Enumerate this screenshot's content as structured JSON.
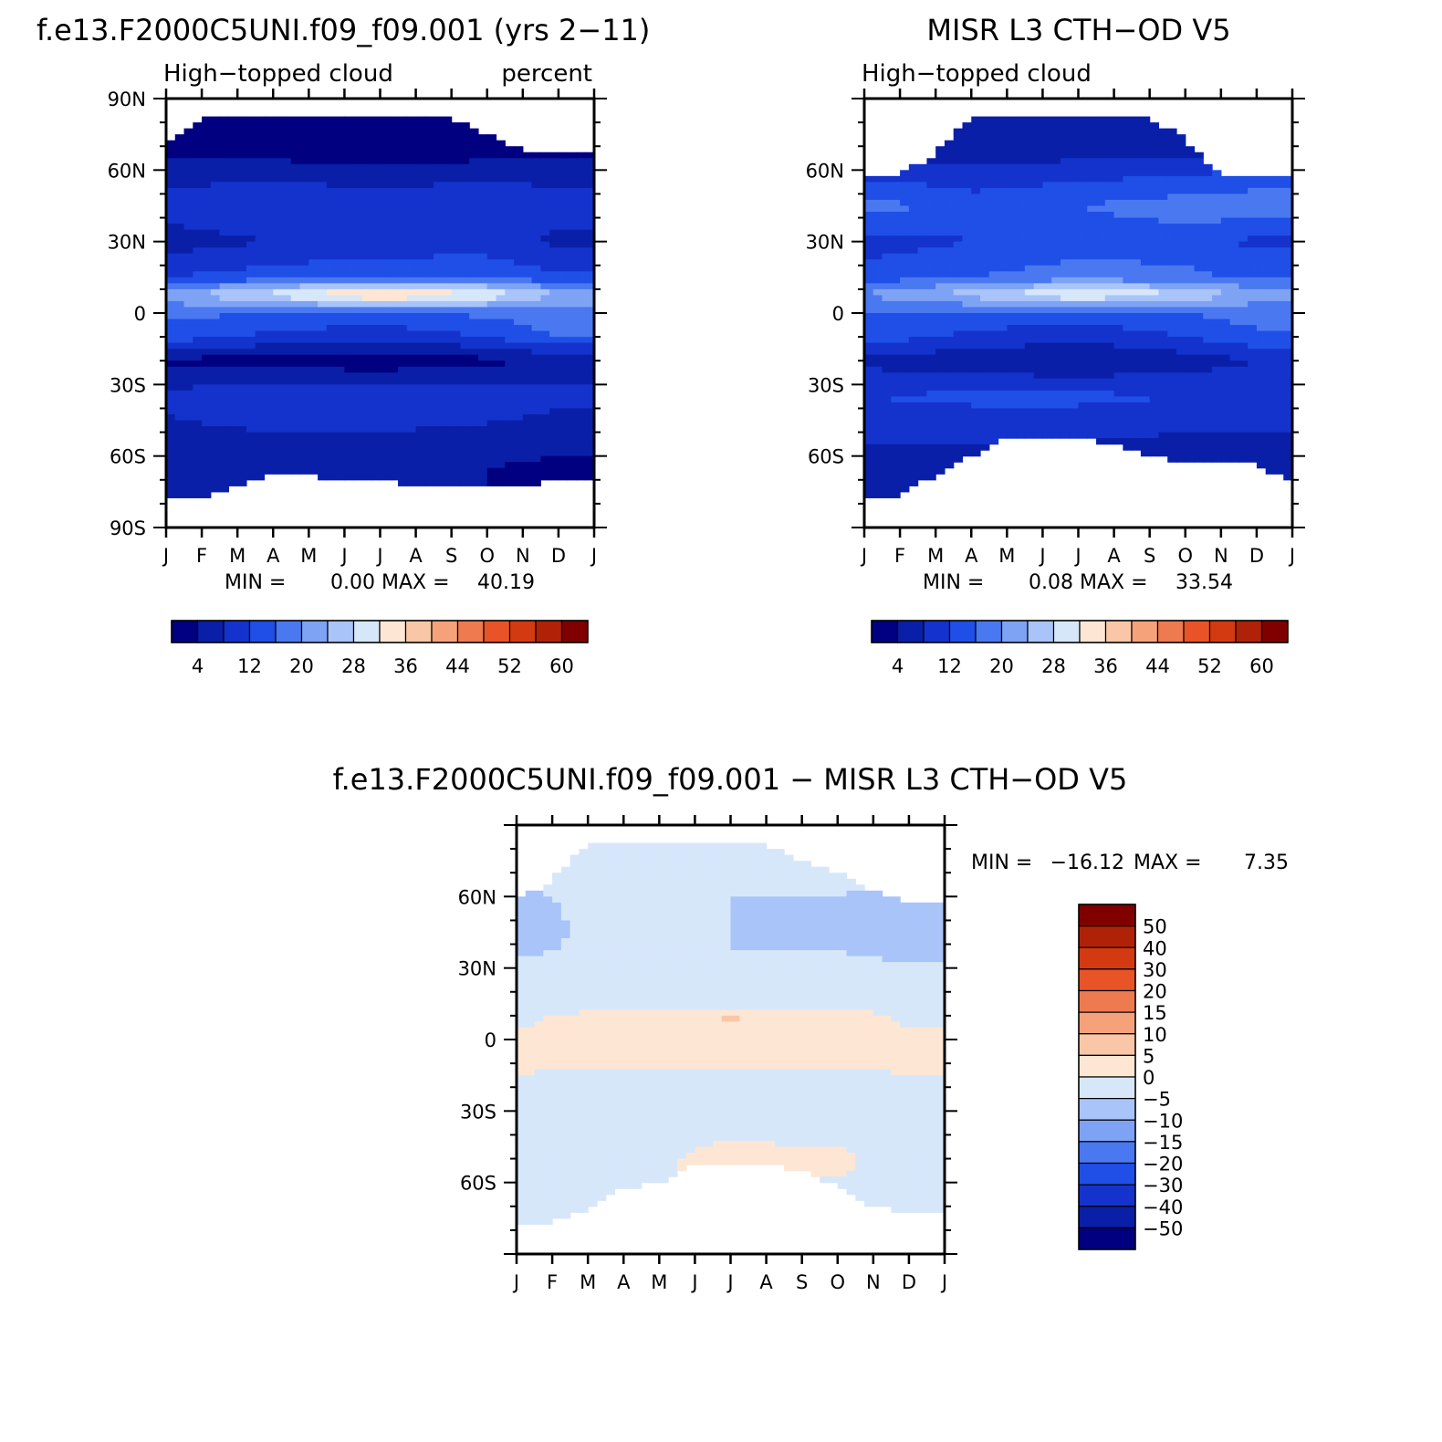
{
  "panels": [
    {
      "title": "f.e13.F2000C5UNI.f09_f09.001 (yrs 2−11)",
      "left_label": "High−topped cloud",
      "right_label": "percent",
      "min_label": "MIN =",
      "min_value": "0.00",
      "max_label": "MAX =",
      "max_value": "40.19"
    },
    {
      "title": "MISR L3 CTH−OD V5",
      "left_label": "High−topped cloud",
      "right_label": "",
      "min_label": "MIN =",
      "min_value": "0.08",
      "max_label": "MAX =",
      "max_value": "33.54"
    },
    {
      "title": "f.e13.F2000C5UNI.f09_f09.001 − MISR L3 CTH−OD V5",
      "left_label": "",
      "right_label": "",
      "min_label": "MIN =",
      "min_value": "−16.12",
      "max_label": "MAX =",
      "max_value": "7.35"
    }
  ],
  "chart_data": [
    {
      "type": "heatmap",
      "title": "f.e13.F2000C5UNI.f09_f09.001 (yrs 2−11)",
      "subtitle_left": "High−topped cloud",
      "subtitle_right": "percent",
      "x_ticks": [
        "J",
        "F",
        "M",
        "A",
        "M",
        "J",
        "J",
        "A",
        "S",
        "O",
        "N",
        "D",
        "J"
      ],
      "y_ticks": [
        "90N",
        "60N",
        "30N",
        "0",
        "30S",
        "60S",
        "90S"
      ],
      "y_tick_values": [
        90,
        60,
        30,
        0,
        -30,
        -60,
        -90
      ],
      "xlim": [
        0,
        12
      ],
      "ylim": [
        -90,
        90
      ],
      "min": 0.0,
      "max": 40.19,
      "colorbar_labels": [
        "4",
        "12",
        "20",
        "28",
        "36",
        "44",
        "52",
        "60"
      ],
      "colorbar_levels": [
        0,
        4,
        8,
        12,
        16,
        20,
        24,
        28,
        32,
        36,
        40,
        44,
        48,
        52,
        56,
        60,
        64
      ],
      "colorbar_colors": [
        "#000080",
        "#0a1fa8",
        "#1433cc",
        "#1f4fe6",
        "#4a78f0",
        "#7ea3f5",
        "#a9c4f8",
        "#d7e7fa",
        "#fde6d3",
        "#f9c7a7",
        "#f5a27b",
        "#ee7a4f",
        "#e85428",
        "#d43a12",
        "#b02208",
        "#800000"
      ],
      "data": {
        "latitudes": [
          70,
          60,
          45,
          30,
          15,
          8,
          0,
          -10,
          -20,
          -35,
          -50,
          -65
        ],
        "months": [
          1,
          4,
          7,
          10,
          12
        ],
        "values": [
          [
            1,
            1,
            1,
            1,
            2
          ],
          [
            6,
            6,
            5,
            6,
            6
          ],
          [
            10,
            12,
            11,
            12,
            10
          ],
          [
            6,
            8,
            9,
            10,
            7
          ],
          [
            12,
            14,
            16,
            15,
            13
          ],
          [
            22,
            30,
            38,
            32,
            24
          ],
          [
            17,
            16,
            15,
            17,
            19
          ],
          [
            14,
            11,
            9,
            12,
            16
          ],
          [
            3,
            2,
            1,
            3,
            5
          ],
          [
            9,
            12,
            12,
            11,
            9
          ],
          [
            7,
            8,
            8,
            7,
            6
          ],
          [
            4,
            5,
            4,
            4,
            3
          ]
        ]
      }
    },
    {
      "type": "heatmap",
      "title": "MISR L3 CTH−OD V5",
      "subtitle_left": "High−topped cloud",
      "x_ticks": [
        "J",
        "F",
        "M",
        "A",
        "M",
        "J",
        "J",
        "A",
        "S",
        "O",
        "N",
        "D",
        "J"
      ],
      "y_ticks": [
        "60N",
        "30N",
        "0",
        "30S",
        "60S"
      ],
      "y_tick_values": [
        60,
        30,
        0,
        -30,
        -60
      ],
      "xlim": [
        0,
        12
      ],
      "ylim": [
        -90,
        90
      ],
      "min": 0.08,
      "max": 33.54,
      "colorbar_labels": [
        "4",
        "12",
        "20",
        "28",
        "36",
        "44",
        "52",
        "60"
      ],
      "colorbar_levels": [
        0,
        4,
        8,
        12,
        16,
        20,
        24,
        28,
        32,
        36,
        40,
        44,
        48,
        52,
        56,
        60,
        64
      ],
      "colorbar_colors": [
        "#000080",
        "#0a1fa8",
        "#1433cc",
        "#1f4fe6",
        "#4a78f0",
        "#7ea3f5",
        "#a9c4f8",
        "#d7e7fa",
        "#fde6d3",
        "#f9c7a7",
        "#f5a27b",
        "#ee7a4f",
        "#e85428",
        "#d43a12",
        "#b02208",
        "#800000"
      ],
      "data": {
        "latitudes": [
          70,
          60,
          45,
          30,
          15,
          8,
          0,
          -10,
          -20,
          -35,
          -50,
          -65
        ],
        "months": [
          1,
          4,
          7,
          10,
          12
        ],
        "values": [
          [
            4,
            4,
            5,
            5,
            5
          ],
          [
            10,
            9,
            10,
            11,
            12
          ],
          [
            18,
            14,
            16,
            18,
            19
          ],
          [
            10,
            12,
            14,
            14,
            11
          ],
          [
            14,
            16,
            18,
            17,
            15
          ],
          [
            20,
            26,
            33,
            28,
            22
          ],
          [
            16,
            15,
            14,
            16,
            18
          ],
          [
            14,
            11,
            9,
            12,
            15
          ],
          [
            7,
            5,
            4,
            6,
            8
          ],
          [
            12,
            13,
            13,
            12,
            11
          ],
          [
            9,
            9,
            9,
            8,
            8
          ],
          [
            6,
            6,
            5,
            5,
            5
          ]
        ]
      }
    },
    {
      "type": "heatmap",
      "title": "f.e13.F2000C5UNI.f09_f09.001 − MISR L3 CTH−OD V5",
      "x_ticks": [
        "J",
        "F",
        "M",
        "A",
        "M",
        "J",
        "J",
        "A",
        "S",
        "O",
        "N",
        "D",
        "J"
      ],
      "y_ticks": [
        "60N",
        "30N",
        "0",
        "30S",
        "60S"
      ],
      "y_tick_values": [
        60,
        30,
        0,
        -30,
        -60
      ],
      "xlim": [
        0,
        12
      ],
      "ylim": [
        -90,
        90
      ],
      "min": -16.12,
      "max": 7.35,
      "colorbar_labels": [
        "50",
        "40",
        "30",
        "20",
        "15",
        "10",
        "5",
        "0",
        "−5",
        "−10",
        "−15",
        "−20",
        "−30",
        "−40",
        "−50"
      ],
      "colorbar_levels": [
        -60,
        -50,
        -40,
        -30,
        -20,
        -15,
        -10,
        -5,
        0,
        5,
        10,
        15,
        20,
        30,
        40,
        50,
        60
      ],
      "colorbar_colors": [
        "#000080",
        "#0a1fa8",
        "#1433cc",
        "#1f4fe6",
        "#4a78f0",
        "#7ea3f5",
        "#a9c4f8",
        "#d7e7fa",
        "#fde6d3",
        "#f9c7a7",
        "#f5a27b",
        "#ee7a4f",
        "#e85428",
        "#d43a12",
        "#b02208",
        "#800000"
      ],
      "data": {
        "latitudes": [
          70,
          60,
          45,
          30,
          15,
          8,
          0,
          -10,
          -20,
          -35,
          -50,
          -65
        ],
        "months": [
          1,
          4,
          7,
          10,
          12
        ],
        "values": [
          [
            -3,
            -3,
            -4,
            -4,
            -3
          ],
          [
            -6,
            -3,
            -5,
            -5,
            -6
          ],
          [
            -8,
            -2,
            -5,
            -6,
            -9
          ],
          [
            -4,
            -4,
            -5,
            -4,
            -4
          ],
          [
            -2,
            -2,
            -2,
            -2,
            -2
          ],
          [
            -1,
            4,
            6,
            4,
            -1
          ],
          [
            1,
            1,
            1,
            1,
            1
          ],
          [
            2,
            1,
            1,
            1,
            2
          ],
          [
            -3,
            -3,
            -3,
            -3,
            -3
          ],
          [
            -3,
            -1,
            -1,
            -2,
            -2
          ],
          [
            -2,
            -1,
            1,
            1,
            -2
          ],
          [
            -2,
            -1,
            1,
            -1,
            -2
          ]
        ]
      }
    }
  ]
}
